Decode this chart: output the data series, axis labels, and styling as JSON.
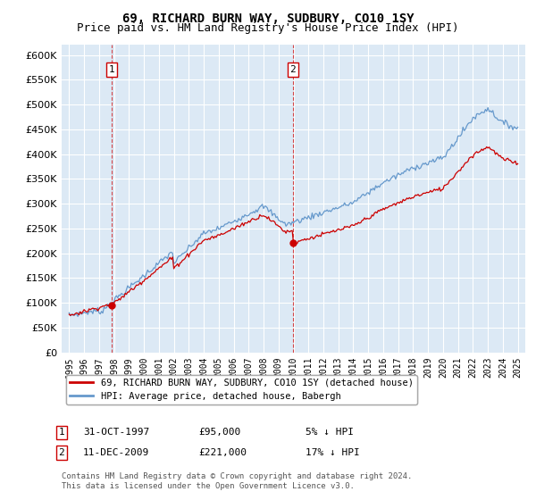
{
  "title": "69, RICHARD BURN WAY, SUDBURY, CO10 1SY",
  "subtitle": "Price paid vs. HM Land Registry's House Price Index (HPI)",
  "ylim": [
    0,
    620000
  ],
  "yticks": [
    0,
    50000,
    100000,
    150000,
    200000,
    250000,
    300000,
    350000,
    400000,
    450000,
    500000,
    550000,
    600000
  ],
  "bg_color": "#dce9f5",
  "grid_color": "#ffffff",
  "sale1_x": 1997.83,
  "sale1_value": 95000,
  "sale2_x": 2009.95,
  "sale2_value": 221000,
  "red_line_color": "#cc0000",
  "blue_line_color": "#6699cc",
  "legend_red": "69, RICHARD BURN WAY, SUDBURY, CO10 1SY (detached house)",
  "legend_blue": "HPI: Average price, detached house, Babergh",
  "note1_label": "1",
  "note1_date": "31-OCT-1997",
  "note1_price": "£95,000",
  "note1_hpi": "5% ↓ HPI",
  "note2_label": "2",
  "note2_date": "11-DEC-2009",
  "note2_price": "£221,000",
  "note2_hpi": "17% ↓ HPI",
  "footer": "Contains HM Land Registry data © Crown copyright and database right 2024.\nThis data is licensed under the Open Government Licence v3.0."
}
